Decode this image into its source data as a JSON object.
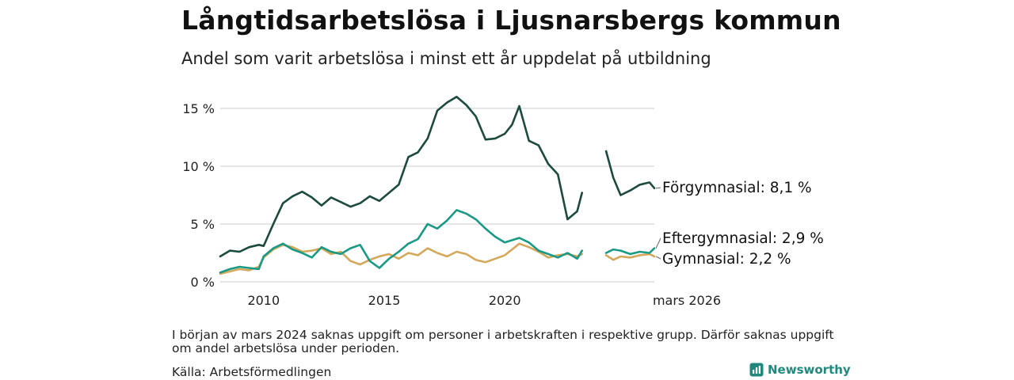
{
  "title": "Långtidsarbetslösa i Ljusnarsbergs kommun",
  "subtitle": "Andel som varit arbetslösa i minst ett år uppdelat på utbildning",
  "note": "I början av mars 2024 saknas uppgift om personer i arbetskraften i respektive grupp. Därför saknas uppgift om andel arbetslösa under perioden.",
  "source": "Källa: Arbetsförmedlingen",
  "brand": {
    "name": "Newsworthy",
    "logo_icon": "bar-chart-icon"
  },
  "colors": {
    "forgymnasial": "#1d4a3f",
    "eftergymnasial": "#1a9985",
    "gymnasial": "#d4a85a",
    "grid": "#dddddd"
  },
  "chart_data": {
    "type": "line",
    "title": "Långtidsarbetslösa i Ljusnarsbergs kommun",
    "subtitle": "Andel som varit arbetslösa i minst ett år uppdelat på utbildning",
    "xlabel": "",
    "ylabel": "",
    "xlim": [
      2008.2,
      2026.2
    ],
    "ylim": [
      0,
      16.5
    ],
    "y_ticks": [
      0,
      5,
      10,
      15
    ],
    "y_tick_labels": [
      "0 %",
      "5 %",
      "10 %",
      "15 %"
    ],
    "x_ticks": [
      2010,
      2015,
      2020,
      2026.2
    ],
    "x_tick_labels": [
      "2010",
      "2015",
      "2020",
      "mars 2026"
    ],
    "grid": true,
    "gap": [
      2023.2,
      2024.2
    ],
    "series": [
      {
        "name": "Förgymnasial",
        "end_label": "Förgymnasial: 8,1 %",
        "x": [
          2008.2,
          2008.6,
          2009.0,
          2009.4,
          2009.8,
          2010.0,
          2010.4,
          2010.8,
          2011.2,
          2011.6,
          2012.0,
          2012.4,
          2012.8,
          2013.2,
          2013.6,
          2014.0,
          2014.4,
          2014.8,
          2015.2,
          2015.6,
          2016.0,
          2016.4,
          2016.8,
          2017.2,
          2017.6,
          2018.0,
          2018.4,
          2018.8,
          2019.2,
          2019.6,
          2020.0,
          2020.3,
          2020.6,
          2021.0,
          2021.4,
          2021.8,
          2022.2,
          2022.6,
          2023.0,
          2023.2,
          2024.2,
          2024.5,
          2024.8,
          2025.2,
          2025.6,
          2026.0,
          2026.2
        ],
        "values": [
          2.2,
          2.7,
          2.6,
          3.0,
          3.2,
          3.1,
          5.0,
          6.8,
          7.4,
          7.8,
          7.3,
          6.6,
          7.3,
          6.9,
          6.5,
          6.8,
          7.4,
          7.0,
          7.7,
          8.4,
          10.8,
          11.2,
          12.4,
          14.8,
          15.5,
          16.0,
          15.3,
          14.3,
          12.3,
          12.4,
          12.8,
          13.6,
          15.2,
          12.2,
          11.8,
          10.2,
          9.3,
          5.4,
          6.1,
          7.7,
          11.3,
          9.0,
          7.5,
          7.9,
          8.4,
          8.6,
          8.1
        ]
      },
      {
        "name": "Eftergymnasial",
        "end_label": "Eftergymnasial: 2,9 %",
        "x": [
          2008.2,
          2008.6,
          2009.0,
          2009.4,
          2009.8,
          2010.0,
          2010.4,
          2010.8,
          2011.2,
          2011.6,
          2012.0,
          2012.4,
          2012.8,
          2013.2,
          2013.6,
          2014.0,
          2014.4,
          2014.8,
          2015.2,
          2015.6,
          2016.0,
          2016.4,
          2016.8,
          2017.2,
          2017.6,
          2018.0,
          2018.4,
          2018.8,
          2019.2,
          2019.6,
          2020.0,
          2020.3,
          2020.6,
          2021.0,
          2021.4,
          2021.8,
          2022.2,
          2022.6,
          2023.0,
          2023.2,
          2024.2,
          2024.5,
          2024.8,
          2025.2,
          2025.6,
          2026.0,
          2026.2
        ],
        "values": [
          0.8,
          1.1,
          1.3,
          1.2,
          1.1,
          2.2,
          2.9,
          3.3,
          2.8,
          2.5,
          2.1,
          3.0,
          2.6,
          2.4,
          2.9,
          3.2,
          1.8,
          1.2,
          2.0,
          2.6,
          3.3,
          3.7,
          5.0,
          4.6,
          5.3,
          6.2,
          5.9,
          5.4,
          4.6,
          3.9,
          3.4,
          3.6,
          3.8,
          3.4,
          2.7,
          2.4,
          2.1,
          2.5,
          2.0,
          2.7,
          2.5,
          2.8,
          2.7,
          2.4,
          2.6,
          2.5,
          2.9
        ]
      },
      {
        "name": "Gymnasial",
        "end_label": "Gymnasial: 2,2 %",
        "x": [
          2008.2,
          2008.6,
          2009.0,
          2009.4,
          2009.8,
          2010.0,
          2010.4,
          2010.8,
          2011.2,
          2011.6,
          2012.0,
          2012.4,
          2012.8,
          2013.2,
          2013.6,
          2014.0,
          2014.4,
          2014.8,
          2015.2,
          2015.6,
          2016.0,
          2016.4,
          2016.8,
          2017.2,
          2017.6,
          2018.0,
          2018.4,
          2018.8,
          2019.2,
          2019.6,
          2020.0,
          2020.3,
          2020.6,
          2021.0,
          2021.4,
          2021.8,
          2022.2,
          2022.6,
          2023.0,
          2023.2,
          2024.2,
          2024.5,
          2024.8,
          2025.2,
          2025.6,
          2026.0,
          2026.2
        ],
        "values": [
          0.7,
          0.9,
          1.1,
          1.0,
          1.3,
          2.1,
          2.8,
          3.2,
          3.0,
          2.6,
          2.7,
          2.9,
          2.4,
          2.6,
          1.8,
          1.5,
          1.9,
          2.2,
          2.4,
          2.0,
          2.5,
          2.3,
          2.9,
          2.5,
          2.2,
          2.6,
          2.4,
          1.9,
          1.7,
          2.0,
          2.3,
          2.8,
          3.3,
          3.0,
          2.6,
          2.1,
          2.3,
          2.4,
          2.2,
          2.4,
          2.3,
          1.9,
          2.2,
          2.1,
          2.3,
          2.4,
          2.2
        ]
      }
    ]
  }
}
